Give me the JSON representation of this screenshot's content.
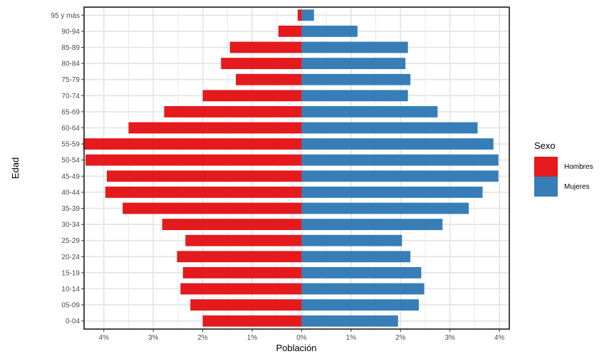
{
  "chart_data": {
    "type": "bar",
    "orientation": "horizontal",
    "subtype": "population-pyramid",
    "xlabel": "Población",
    "ylabel": "Edad",
    "xlim": [
      -4.4,
      4.2
    ],
    "x_ticks": [
      -4,
      -3,
      -2,
      -1,
      0,
      1,
      2,
      3,
      4
    ],
    "x_tick_labels": [
      "4%",
      "3%",
      "2%",
      "1%",
      "0%",
      "1%",
      "2%",
      "3%",
      "4%"
    ],
    "grid": true,
    "legend": {
      "title": "Sexo",
      "placement": "right",
      "entries": [
        {
          "label": "Hombres",
          "color": "#e41a1c"
        },
        {
          "label": "Mujeres",
          "color": "#377eb8"
        }
      ]
    },
    "categories": [
      "0-04",
      "05-09",
      "10-14",
      "15-19",
      "20-24",
      "25-29",
      "30-34",
      "35-39",
      "40-44",
      "45-49",
      "50-54",
      "55-59",
      "60-64",
      "65-69",
      "70-74",
      "75-79",
      "80-84",
      "85-89",
      "90-94",
      "95 y más"
    ],
    "series": [
      {
        "name": "Hombres",
        "color": "#e41a1c",
        "values": [
          -2.0,
          -2.25,
          -2.45,
          -2.4,
          -2.52,
          -2.35,
          -2.82,
          -3.62,
          -3.97,
          -3.94,
          -4.37,
          -4.42,
          -3.5,
          -2.78,
          -2.0,
          -1.33,
          -1.63,
          -1.45,
          -0.47,
          -0.08
        ]
      },
      {
        "name": "Mujeres",
        "color": "#377eb8",
        "values": [
          1.95,
          2.37,
          2.48,
          2.42,
          2.2,
          2.03,
          2.85,
          3.38,
          3.66,
          3.98,
          3.98,
          3.88,
          3.56,
          2.75,
          2.15,
          2.2,
          2.1,
          2.15,
          1.13,
          0.25
        ]
      }
    ]
  }
}
